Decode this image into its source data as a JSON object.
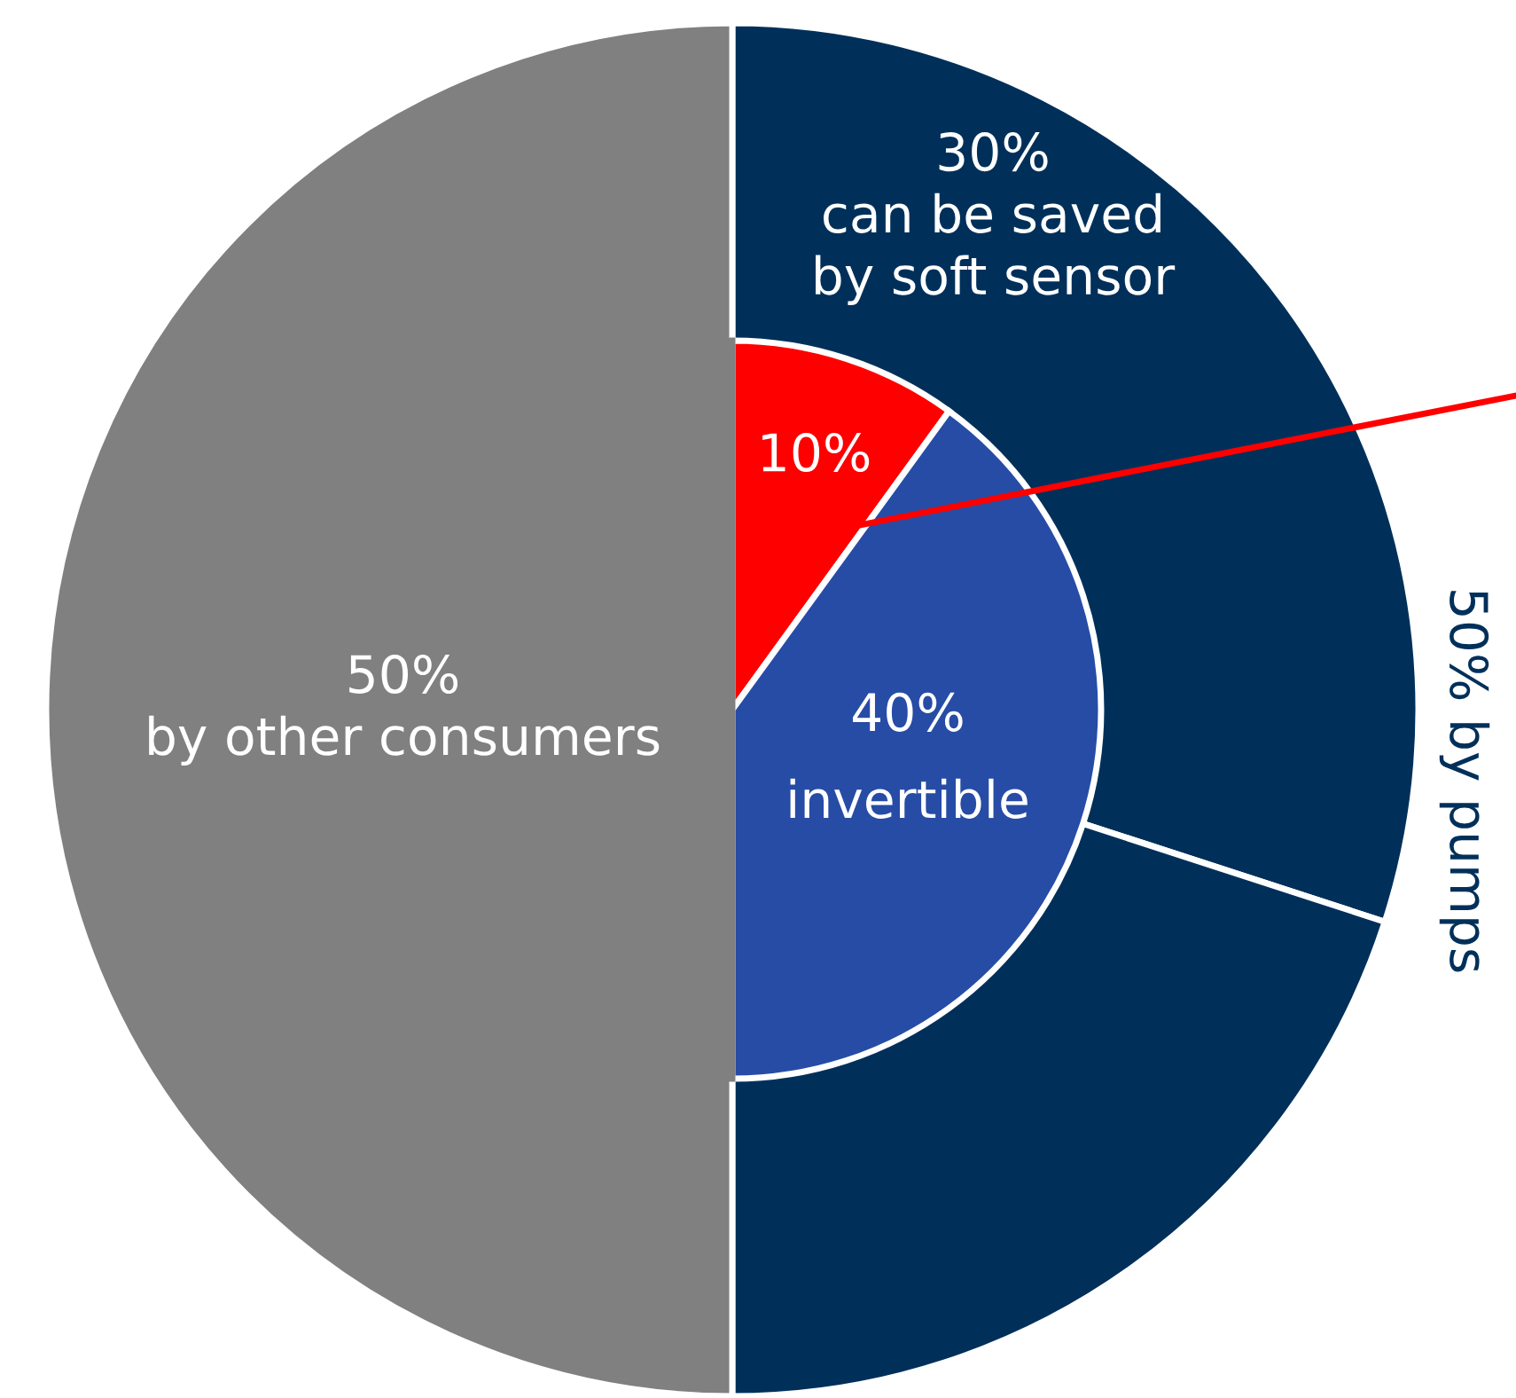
{
  "chart_data": {
    "type": "pie",
    "categories": [
      "can be saved by soft sensor",
      null,
      "by other consumers"
    ],
    "series": [
      {
        "values": [
          30,
          20,
          50
        ],
        "colors": [
          "#00305a",
          "#00305a",
          "#808080"
        ],
        "value_labels": [
          "30%",
          null,
          "50%"
        ]
      },
      {
        "values": [
          10,
          40,
          50
        ],
        "colors": [
          "#ff0000",
          "#264ca6",
          "#808080"
        ],
        "value_labels": [
          "10%",
          "40%",
          null
        ]
      }
    ],
    "annotations": [
      "invertible",
      "50% by pumps"
    ]
  }
}
